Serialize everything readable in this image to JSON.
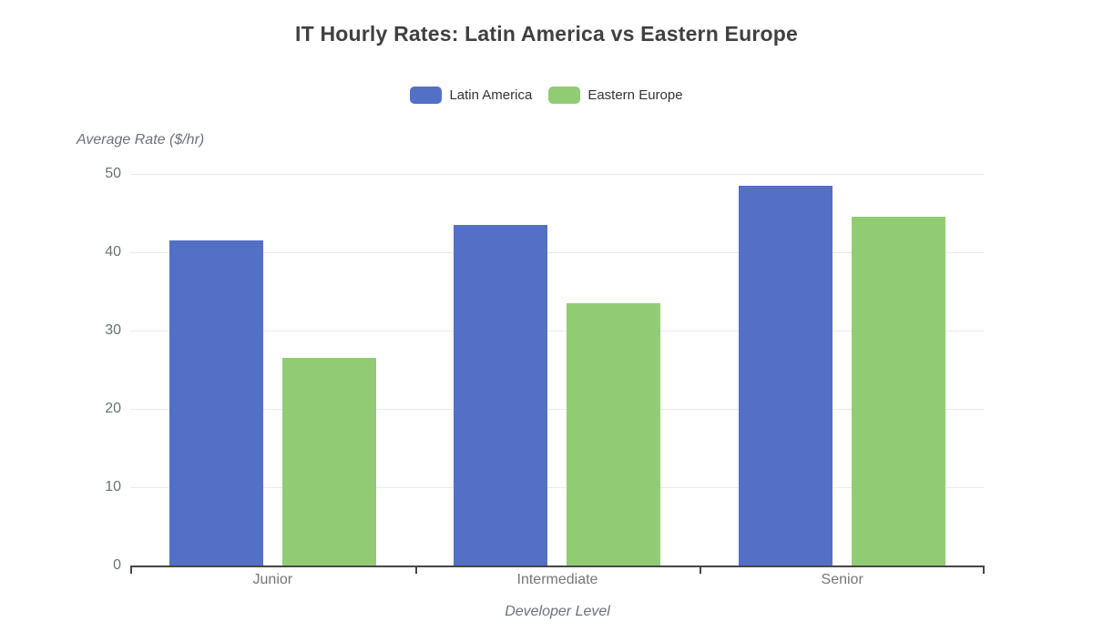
{
  "title": "IT Hourly Rates: Latin America vs Eastern Europe",
  "chart_data": {
    "type": "bar",
    "categories": [
      "Junior",
      "Intermediate",
      "Senior"
    ],
    "series": [
      {
        "name": "Latin America",
        "color": "#5470C6",
        "values": [
          41.5,
          43.5,
          48.5
        ]
      },
      {
        "name": "Eastern Europe",
        "color": "#91CC75",
        "values": [
          26.5,
          33.5,
          44.5
        ]
      }
    ],
    "title": "IT Hourly Rates: Latin America vs Eastern Europe",
    "xlabel": "Developer Level",
    "ylabel": "Average Rate ($/hr)",
    "ylim": [
      0,
      50
    ],
    "yticks": [
      0,
      10,
      20,
      30,
      40,
      50
    ],
    "grid": true,
    "legend_position": "top"
  },
  "colors": {
    "title_text": "#404040",
    "axis_name_text": "#6e7079",
    "tick_label_text": "#6b7076",
    "category_label_text": "#757575",
    "legend_text": "#333333",
    "gridline": "#e9ebf0",
    "axis_line": "#464646",
    "background": "#ffffff"
  }
}
